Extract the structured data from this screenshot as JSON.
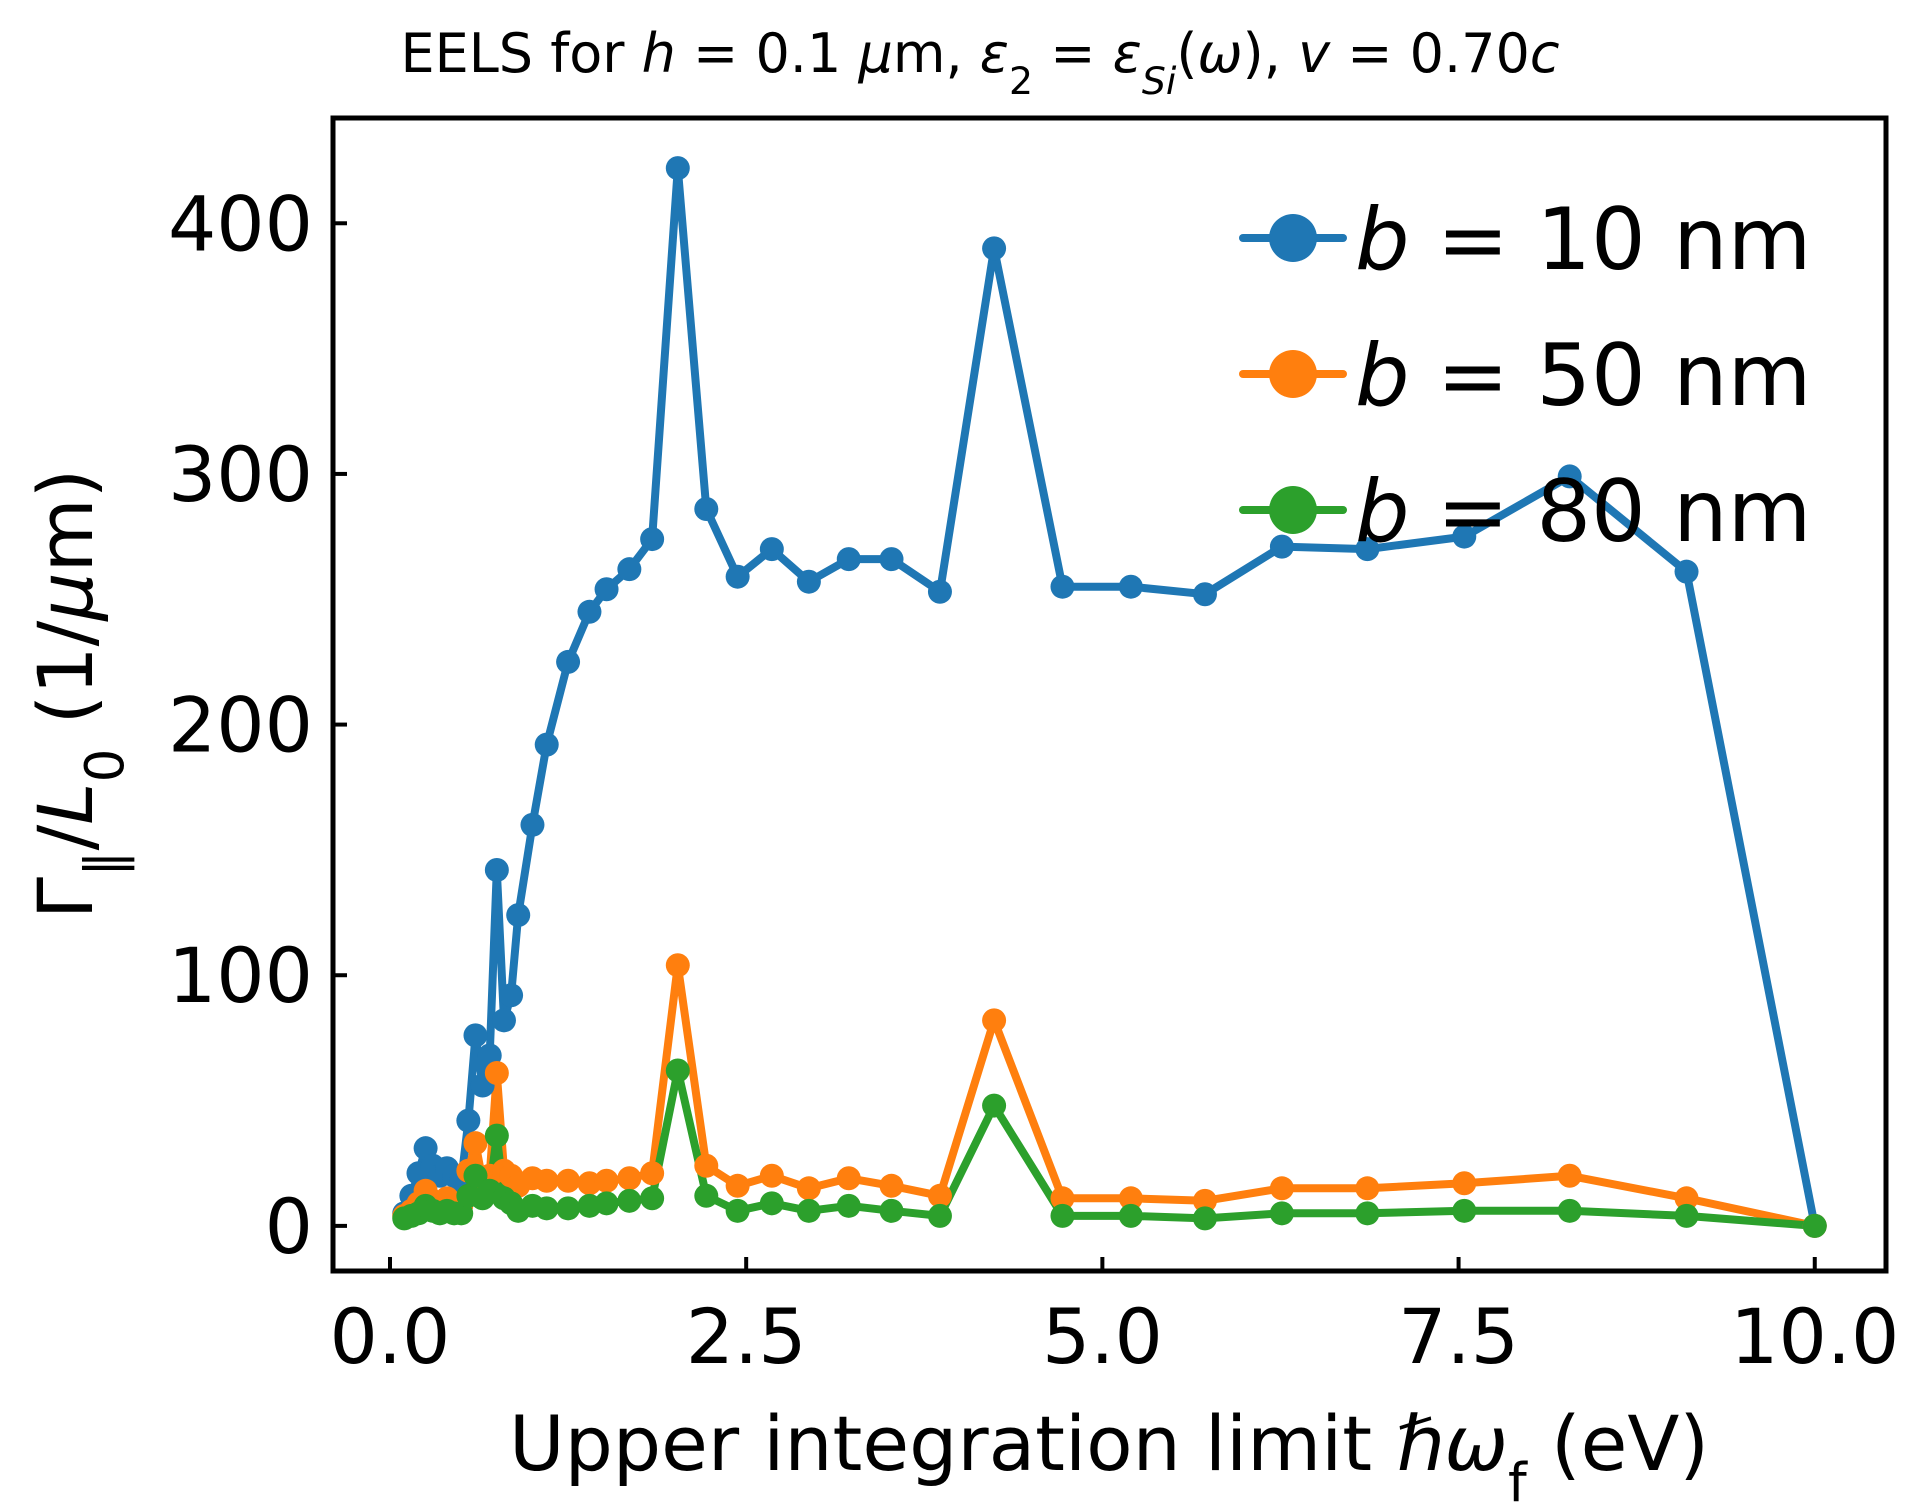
{
  "chart_data": {
    "type": "line",
    "title": "EELS for h = 0.1 μm, ε₂ = ε_Si(ω), v = 0.70c",
    "title_parts": [
      {
        "text": "EELS for ",
        "style": "normal"
      },
      {
        "text": "h",
        "style": "italic"
      },
      {
        "text": " = 0.1 ",
        "style": "normal"
      },
      {
        "text": "μ",
        "style": "italic"
      },
      {
        "text": "m, ",
        "style": "normal"
      },
      {
        "text": "ε",
        "style": "italic"
      },
      {
        "text": "2",
        "style": "sub"
      },
      {
        "text": " = ",
        "style": "normal"
      },
      {
        "text": "ε",
        "style": "italic"
      },
      {
        "text": "Si",
        "style": "subitalic"
      },
      {
        "text": "(",
        "style": "normal"
      },
      {
        "text": "ω",
        "style": "italic"
      },
      {
        "text": "), ",
        "style": "normal"
      },
      {
        "text": "v",
        "style": "italic"
      },
      {
        "text": " = 0.70",
        "style": "normal"
      },
      {
        "text": "c",
        "style": "italic"
      }
    ],
    "xlabel": "Upper integration limit ℏω_f (eV)",
    "xlabel_parts": [
      {
        "text": "Upper integration limit ",
        "style": "normal"
      },
      {
        "text": "ℏω",
        "style": "italic"
      },
      {
        "text": "f",
        "style": "sub"
      },
      {
        "text": " (eV)",
        "style": "normal"
      }
    ],
    "ylabel": "Γ_∥ / L_0 (1/μm)",
    "ylabel_parts": [
      {
        "text": "Γ",
        "style": "normal"
      },
      {
        "text": "∥",
        "style": "sub"
      },
      {
        "text": "/",
        "style": "normal"
      },
      {
        "text": "L",
        "style": "italic"
      },
      {
        "text": "0",
        "style": "sub"
      },
      {
        "text": " (1/",
        "style": "normal"
      },
      {
        "text": "μ",
        "style": "italic"
      },
      {
        "text": "m)",
        "style": "normal"
      }
    ],
    "xlim": [
      -0.4,
      10.5
    ],
    "ylim": [
      -18,
      442
    ],
    "xticks": [
      0.0,
      2.5,
      5.0,
      7.5,
      10.0
    ],
    "xtick_labels": [
      "0.0",
      "2.5",
      "5.0",
      "7.5",
      "10.0"
    ],
    "yticks": [
      0,
      100,
      200,
      300,
      400
    ],
    "ytick_labels": [
      "0",
      "100",
      "200",
      "300",
      "400"
    ],
    "grid": false,
    "legend_position": "top-right",
    "x": [
      0.1,
      0.15,
      0.2,
      0.25,
      0.3,
      0.35,
      0.4,
      0.45,
      0.5,
      0.55,
      0.6,
      0.65,
      0.7,
      0.75,
      0.8,
      0.85,
      0.9,
      1.0,
      1.1,
      1.25,
      1.4,
      1.52,
      1.68,
      1.84,
      2.02,
      2.22,
      2.44,
      2.68,
      2.94,
      3.22,
      3.52,
      3.86,
      4.24,
      4.72,
      5.2,
      5.72,
      6.26,
      6.86,
      7.54,
      8.28,
      9.1,
      10.0
    ],
    "series": [
      {
        "name": "b = 10 nm",
        "name_parts": [
          {
            "text": "b",
            "style": "italic"
          },
          {
            "text": " = 10 nm",
            "style": "normal"
          }
        ],
        "color": "#1f77b4",
        "values": [
          5,
          12,
          21,
          31,
          24,
          20,
          23,
          20,
          18,
          42,
          76,
          56,
          68,
          142,
          82,
          92,
          124,
          160,
          192,
          225,
          245,
          254,
          262,
          274,
          422,
          286,
          259,
          270,
          257,
          266,
          266,
          253,
          390,
          255,
          255,
          252,
          271,
          270,
          275,
          299,
          261,
          0
        ]
      },
      {
        "name": "b = 50 nm",
        "name_parts": [
          {
            "text": "b",
            "style": "italic"
          },
          {
            "text": " = 50 nm",
            "style": "normal"
          }
        ],
        "color": "#ff7f0e",
        "values": [
          4,
          6,
          9,
          14,
          10,
          8,
          11,
          9,
          8,
          22,
          33,
          18,
          20,
          61,
          22,
          20,
          16,
          19,
          18,
          18,
          17,
          18,
          19,
          21,
          104,
          24,
          16,
          20,
          15,
          19,
          16,
          12,
          82,
          11,
          11,
          10,
          15,
          15,
          17,
          20,
          11,
          0
        ]
      },
      {
        "name": "b = 80 nm",
        "name_parts": [
          {
            "text": "b",
            "style": "italic"
          },
          {
            "text": " = 80 nm",
            "style": "normal"
          }
        ],
        "color": "#2ca02c",
        "values": [
          3,
          4,
          5,
          8,
          6,
          5,
          6,
          5,
          5,
          12,
          20,
          11,
          14,
          36,
          11,
          9,
          6,
          8,
          7,
          7,
          8,
          9,
          10,
          11,
          62,
          12,
          6,
          9,
          6,
          8,
          6,
          4,
          48,
          4,
          4,
          3,
          5,
          5,
          6,
          6,
          4,
          0
        ]
      }
    ]
  }
}
